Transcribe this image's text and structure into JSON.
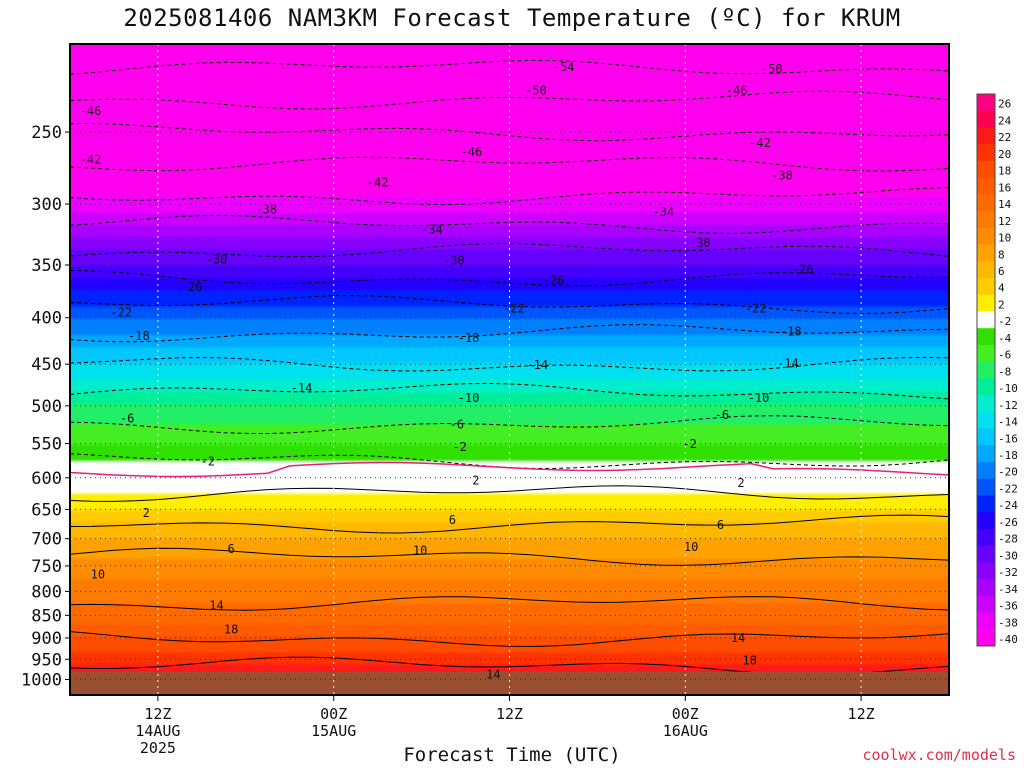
{
  "page": {
    "title": "2025081406 NAM3KM Forecast Temperature (ºC) for KRUM",
    "credit": "coolwx.com/models"
  },
  "chart_data": {
    "type": "heatmap",
    "title": "2025081406 NAM3KM Forecast Temperature (ºC) for KRUM",
    "xlabel": "Forecast Time (UTC)",
    "ylabel": "",
    "x_ticks": [
      {
        "hour": 6,
        "lines": [
          "12Z",
          "14AUG",
          "2025"
        ]
      },
      {
        "hour": 18,
        "lines": [
          "00Z",
          "15AUG"
        ]
      },
      {
        "hour": 30,
        "lines": [
          "12Z"
        ]
      },
      {
        "hour": 42,
        "lines": [
          "00Z",
          "16AUG"
        ]
      },
      {
        "hour": 54,
        "lines": [
          "12Z"
        ]
      }
    ],
    "xlim_hours": [
      0,
      60
    ],
    "y_axis": "pressure (hPa), log scale, inverted",
    "ylim_hpa": [
      200,
      1040
    ],
    "y_ticks": [
      250,
      300,
      350,
      400,
      450,
      500,
      550,
      600,
      650,
      700,
      750,
      800,
      850,
      900,
      950,
      1000
    ],
    "ground_level_hpa": 985,
    "colorbar": {
      "levels": [
        26,
        24,
        22,
        20,
        18,
        16,
        14,
        12,
        10,
        8,
        6,
        4,
        2,
        -2,
        -4,
        -6,
        -8,
        -10,
        -12,
        -14,
        -16,
        -18,
        -20,
        -22,
        -24,
        -26,
        -28,
        -30,
        -32,
        -34,
        -36,
        -38,
        -40
      ],
      "colors": [
        "#ff0080",
        "#ff0050",
        "#ff1a1a",
        "#ff3300",
        "#ff4d00",
        "#ff5c00",
        "#ff6a00",
        "#ff7a00",
        "#ff8c00",
        "#ffa200",
        "#ffb800",
        "#ffcc00",
        "#ffee00",
        "#ffffff",
        "#30e000",
        "#44ee22",
        "#22ee66",
        "#00ee99",
        "#00eecc",
        "#00e0ee",
        "#00c8ff",
        "#00a8ff",
        "#0080ff",
        "#0055ff",
        "#0022ff",
        "#2200ff",
        "#4400ff",
        "#6600ff",
        "#8800ff",
        "#aa00ff",
        "#cc00ff",
        "#ee00ff",
        "#ff00ee"
      ]
    },
    "profile": [
      {
        "p": 200,
        "t": -57
      },
      {
        "p": 250,
        "t": -46
      },
      {
        "p": 300,
        "t": -37
      },
      {
        "p": 350,
        "t": -28
      },
      {
        "p": 400,
        "t": -20
      },
      {
        "p": 450,
        "t": -14
      },
      {
        "p": 500,
        "t": -8
      },
      {
        "p": 550,
        "t": -4
      },
      {
        "p": 600,
        "t": 0
      },
      {
        "p": 650,
        "t": 4
      },
      {
        "p": 700,
        "t": 8
      },
      {
        "p": 750,
        "t": 11
      },
      {
        "p": 800,
        "t": 13
      },
      {
        "p": 850,
        "t": 15
      },
      {
        "p": 900,
        "t": 18
      },
      {
        "p": 950,
        "t": 21
      },
      {
        "p": 1000,
        "t": 24
      }
    ],
    "contour_labels": [
      {
        "hour": 33.7,
        "p": 212,
        "text": "-54"
      },
      {
        "hour": 31.8,
        "p": 225,
        "text": "-50"
      },
      {
        "hour": 47.9,
        "p": 213,
        "text": "-50"
      },
      {
        "hour": 45.5,
        "p": 225,
        "text": "-46"
      },
      {
        "hour": 1.4,
        "p": 237,
        "text": "-46"
      },
      {
        "hour": 27.4,
        "p": 263,
        "text": "-46"
      },
      {
        "hour": 1.4,
        "p": 268,
        "text": "-42"
      },
      {
        "hour": 21.0,
        "p": 284,
        "text": "-42"
      },
      {
        "hour": 47.1,
        "p": 257,
        "text": "-42"
      },
      {
        "hour": 48.6,
        "p": 279,
        "text": "-38"
      },
      {
        "hour": 13.4,
        "p": 304,
        "text": "-38"
      },
      {
        "hour": 24.7,
        "p": 320,
        "text": "-34"
      },
      {
        "hour": 40.5,
        "p": 306,
        "text": "-34"
      },
      {
        "hour": 10.0,
        "p": 345,
        "text": "-30"
      },
      {
        "hour": 26.2,
        "p": 346,
        "text": "-30"
      },
      {
        "hour": 43.0,
        "p": 331,
        "text": "-30"
      },
      {
        "hour": 8.3,
        "p": 370,
        "text": "-26"
      },
      {
        "hour": 33.0,
        "p": 364,
        "text": "-26"
      },
      {
        "hour": 50.0,
        "p": 354,
        "text": "-26"
      },
      {
        "hour": 3.5,
        "p": 395,
        "text": "-22"
      },
      {
        "hour": 30.3,
        "p": 391,
        "text": "-22"
      },
      {
        "hour": 46.8,
        "p": 391,
        "text": "-22"
      },
      {
        "hour": 4.7,
        "p": 419,
        "text": "-18"
      },
      {
        "hour": 27.2,
        "p": 421,
        "text": "-18"
      },
      {
        "hour": 49.2,
        "p": 414,
        "text": "-18"
      },
      {
        "hour": 15.8,
        "p": 478,
        "text": "-14"
      },
      {
        "hour": 31.9,
        "p": 451,
        "text": "-14"
      },
      {
        "hour": 49.0,
        "p": 449,
        "text": "-14"
      },
      {
        "hour": 27.2,
        "p": 490,
        "text": "-10"
      },
      {
        "hour": 47.0,
        "p": 490,
        "text": "-10"
      },
      {
        "hour": 3.9,
        "p": 516,
        "text": "-6"
      },
      {
        "hour": 26.4,
        "p": 524,
        "text": "-6"
      },
      {
        "hour": 44.5,
        "p": 512,
        "text": "-6"
      },
      {
        "hour": 9.4,
        "p": 576,
        "text": "-2"
      },
      {
        "hour": 26.6,
        "p": 555,
        "text": "-2"
      },
      {
        "hour": 42.3,
        "p": 551,
        "text": "-2"
      },
      {
        "hour": 27.7,
        "p": 604,
        "text": "2"
      },
      {
        "hour": 45.8,
        "p": 608,
        "text": "2"
      },
      {
        "hour": 5.2,
        "p": 656,
        "text": "2"
      },
      {
        "hour": 26.1,
        "p": 668,
        "text": "6"
      },
      {
        "hour": 44.4,
        "p": 676,
        "text": "6"
      },
      {
        "hour": 11.0,
        "p": 719,
        "text": "6"
      },
      {
        "hour": 1.9,
        "p": 766,
        "text": "10"
      },
      {
        "hour": 23.9,
        "p": 721,
        "text": "10"
      },
      {
        "hour": 42.4,
        "p": 715,
        "text": "10"
      },
      {
        "hour": 10.0,
        "p": 829,
        "text": "14"
      },
      {
        "hour": 45.6,
        "p": 900,
        "text": "14"
      },
      {
        "hour": 28.9,
        "p": 987,
        "text": "14"
      },
      {
        "hour": 11.0,
        "p": 881,
        "text": "18"
      },
      {
        "hour": 46.4,
        "p": 953,
        "text": "18"
      }
    ]
  }
}
